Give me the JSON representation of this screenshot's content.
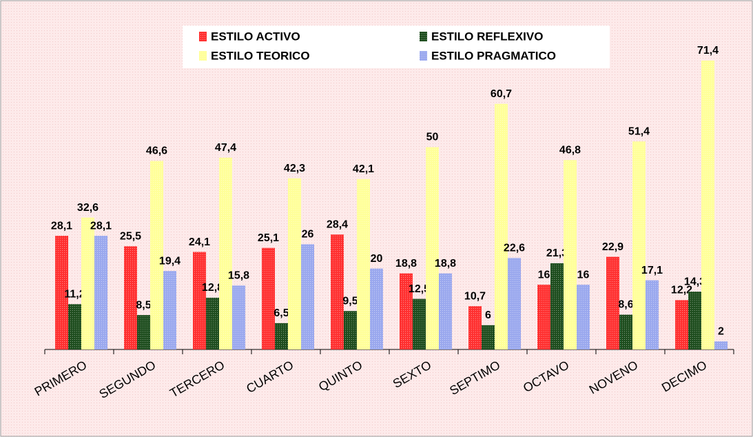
{
  "chart_data": {
    "type": "bar",
    "categories": [
      "PRIMERO",
      "SEGUNDO",
      "TERCERO",
      "CUARTO",
      "QUINTO",
      "SEXTO",
      "SEPTIMO",
      "OCTAVO",
      "NOVENO",
      "DECIMO"
    ],
    "series": [
      {
        "name": "ESTILO ACTIVO",
        "color": "#ff3030",
        "values": [
          28.1,
          25.5,
          24.1,
          25.1,
          28.4,
          18.8,
          10.7,
          16,
          22.9,
          12.2
        ],
        "value_labels": [
          "28,1",
          "25,5",
          "24,1",
          "25,1",
          "28,4",
          "18,8",
          "10,7",
          "16",
          "22,9",
          "12,2"
        ]
      },
      {
        "name": "ESTILO REFLEXIVO",
        "color": "#1e4d1e",
        "values": [
          11.2,
          8.5,
          12.8,
          6.5,
          9.5,
          12.5,
          6,
          21.3,
          8.6,
          14.3
        ],
        "value_labels": [
          "11,2",
          "8,5",
          "12,8",
          "6,5",
          "9,5",
          "12,5",
          "6",
          "21,3",
          "8,6",
          "14,3"
        ]
      },
      {
        "name": "ESTILO TEORICO",
        "color": "#ffff99",
        "values": [
          32.6,
          46.6,
          47.4,
          42.3,
          42.1,
          50,
          60.7,
          46.8,
          51.4,
          71.4
        ],
        "value_labels": [
          "32,6",
          "46,6",
          "47,4",
          "42,3",
          "42,1",
          "50",
          "60,7",
          "46,8",
          "51,4",
          "71,4"
        ]
      },
      {
        "name": "ESTILO PRAGMATICO",
        "color": "#9aa8ee",
        "values": [
          28.1,
          19.4,
          15.8,
          26,
          20,
          18.8,
          22.6,
          16,
          17.1,
          2
        ],
        "value_labels": [
          "28,1",
          "19,4",
          "15,8",
          "26",
          "20",
          "18,8",
          "22,6",
          "16",
          "17,1",
          "2"
        ]
      }
    ]
  }
}
